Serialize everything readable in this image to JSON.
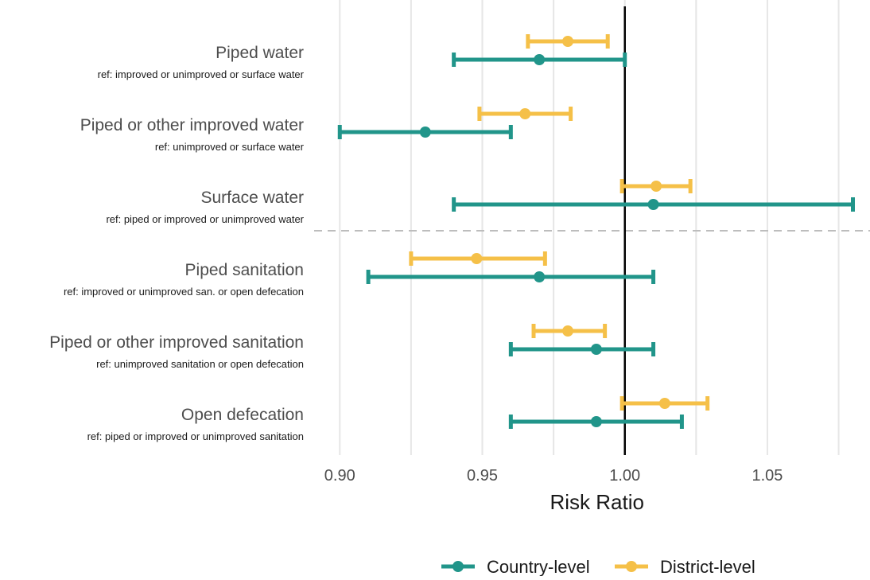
{
  "chart_data": {
    "type": "forest",
    "xlabel": "Risk Ratio",
    "xlim": [
      0.891,
      1.086
    ],
    "xticks": [
      0.9,
      0.95,
      1.0,
      1.05
    ],
    "xtick_labels": [
      "0.90",
      "0.95",
      "1.00",
      "1.05"
    ],
    "reference_line": 1.0,
    "grid": "vertical",
    "legend_position": "bottom",
    "separator_after_category": 2,
    "categories": [
      {
        "label": "Piped water",
        "ref": "ref: improved or unimproved or surface water"
      },
      {
        "label": "Piped or other improved water",
        "ref": "ref: unimproved or surface water"
      },
      {
        "label": "Surface water",
        "ref": "ref: piped or improved or unimproved water"
      },
      {
        "label": "Piped sanitation",
        "ref": "ref: improved or unimproved san. or open defecation"
      },
      {
        "label": "Piped or other improved sanitation",
        "ref": "ref: unimproved sanitation or open defecation"
      },
      {
        "label": "Open defecation",
        "ref": "ref: piped or improved or unimproved sanitation"
      }
    ],
    "series": [
      {
        "name": "Country-level",
        "color": "#21958a",
        "estimates": [
          0.97,
          0.93,
          1.01,
          0.97,
          0.99,
          0.99
        ],
        "lower": [
          0.94,
          0.9,
          0.94,
          0.91,
          0.96,
          0.96
        ],
        "upper": [
          1.0,
          0.96,
          1.08,
          1.01,
          1.01,
          1.02
        ]
      },
      {
        "name": "District-level",
        "color": "#f5c048",
        "estimates": [
          0.98,
          0.965,
          1.011,
          0.948,
          0.98,
          1.014
        ],
        "lower": [
          0.966,
          0.949,
          0.999,
          0.925,
          0.968,
          0.999
        ],
        "upper": [
          0.994,
          0.981,
          1.023,
          0.972,
          0.993,
          1.029
        ]
      }
    ]
  }
}
